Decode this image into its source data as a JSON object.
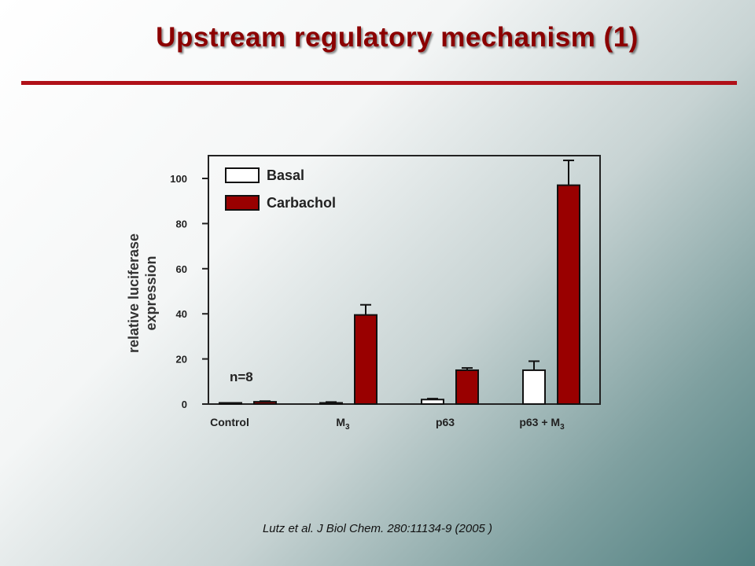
{
  "title": "Upstream regulatory mechanism (1)",
  "citation": "Lutz et al. J Biol Chem. 280:11134-9  (2005 )",
  "colors": {
    "title": "#8b0000",
    "rule": "#b01018",
    "carbachol": "#990000",
    "basal": "#ffffff"
  },
  "chart_data": {
    "type": "bar",
    "ylabel_lines": [
      "relative luciferase",
      "expression"
    ],
    "ylim": [
      0,
      110
    ],
    "yticks": [
      0,
      20,
      40,
      60,
      80,
      100
    ],
    "categories": [
      {
        "main": "Control",
        "sub": ""
      },
      {
        "main": "M",
        "sub": "3"
      },
      {
        "main": "p63",
        "sub": ""
      },
      {
        "main": "p63 + M",
        "sub": "3"
      }
    ],
    "series": [
      {
        "name": "Basal",
        "values": [
          0.3,
          0.5,
          2,
          15
        ],
        "errors": [
          0,
          0.4,
          0.4,
          4
        ]
      },
      {
        "name": "Carbachol",
        "values": [
          1,
          39.5,
          15,
          97
        ],
        "errors": [
          0.3,
          4.5,
          1,
          11
        ]
      }
    ],
    "annotation": "n=8",
    "legend_position": "top-left",
    "grid": false
  }
}
